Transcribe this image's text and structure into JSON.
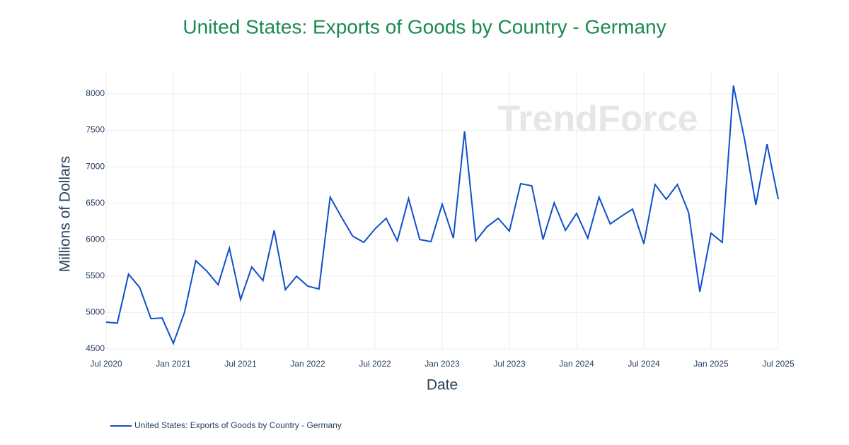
{
  "chart_data": {
    "type": "line",
    "title": "United States: Exports of Goods by Country - Germany",
    "watermark": "TrendForce",
    "x_label": "Date",
    "y_label": "Millions of Dollars",
    "x": [
      "2020-07",
      "2020-08",
      "2020-09",
      "2020-10",
      "2020-11",
      "2020-12",
      "2021-01",
      "2021-02",
      "2021-03",
      "2021-04",
      "2021-05",
      "2021-06",
      "2021-07",
      "2021-08",
      "2021-09",
      "2021-10",
      "2021-11",
      "2021-12",
      "2022-01",
      "2022-02",
      "2022-03",
      "2022-04",
      "2022-05",
      "2022-06",
      "2022-07",
      "2022-08",
      "2022-09",
      "2022-10",
      "2022-11",
      "2022-12",
      "2023-01",
      "2023-02",
      "2023-03",
      "2023-04",
      "2023-05",
      "2023-06",
      "2023-07",
      "2023-08",
      "2023-09",
      "2023-10",
      "2023-11",
      "2023-12",
      "2024-01",
      "2024-02",
      "2024-03",
      "2024-04",
      "2024-05",
      "2024-06",
      "2024-07",
      "2024-08",
      "2024-09",
      "2024-10",
      "2024-11",
      "2024-12",
      "2025-01",
      "2025-02",
      "2025-03",
      "2025-04",
      "2025-05",
      "2025-06",
      "2025-07"
    ],
    "series": [
      {
        "name": "United States: Exports of Goods by Country - Germany",
        "color": "#0f4fcc",
        "values": [
          4867,
          4855,
          5527,
          5343,
          4916,
          4925,
          4576,
          5003,
          5711,
          5566,
          5381,
          5886,
          5178,
          5624,
          5439,
          6128,
          5313,
          5498,
          5362,
          5323,
          6584,
          6312,
          6050,
          5963,
          6147,
          6293,
          5983,
          6565,
          6002,
          5973,
          6487,
          6021,
          7486,
          5983,
          6177,
          6293,
          6118,
          6768,
          6739,
          6002,
          6506,
          6128,
          6361,
          6021,
          6584,
          6215,
          6322,
          6419,
          5944,
          6758,
          6555,
          6758,
          6370,
          5284,
          6089,
          5963,
          8116,
          7370,
          6477,
          7311,
          6555
        ]
      }
    ],
    "xlim": [
      "2020-07",
      "2025-07"
    ],
    "xticks": [
      {
        "value": "2020-07",
        "label": "Jul 2020"
      },
      {
        "value": "2021-01",
        "label": "Jan 2021"
      },
      {
        "value": "2021-07",
        "label": "Jul 2021"
      },
      {
        "value": "2022-01",
        "label": "Jan 2022"
      },
      {
        "value": "2022-07",
        "label": "Jul 2022"
      },
      {
        "value": "2023-01",
        "label": "Jan 2023"
      },
      {
        "value": "2023-07",
        "label": "Jul 2023"
      },
      {
        "value": "2024-01",
        "label": "Jan 2024"
      },
      {
        "value": "2024-07",
        "label": "Jul 2024"
      },
      {
        "value": "2025-01",
        "label": "Jan 2025"
      },
      {
        "value": "2025-07",
        "label": "Jul 2025"
      }
    ],
    "ylim": [
      4500,
      8320
    ],
    "yticks": [
      4500,
      5000,
      5500,
      6000,
      6500,
      7000,
      7500,
      8000
    ],
    "grid": true
  }
}
